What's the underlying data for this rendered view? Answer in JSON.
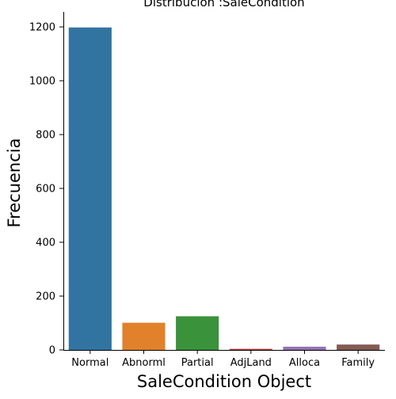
{
  "chart_data": {
    "type": "bar",
    "title": "Distribución :SaleCondition",
    "xlabel": "SaleCondition Object",
    "ylabel": "Frecuencia",
    "categories": [
      "Normal",
      "Abnorml",
      "Partial",
      "AdjLand",
      "Alloca",
      "Family"
    ],
    "values": [
      1198,
      101,
      125,
      4,
      12,
      20
    ],
    "colors": [
      "#3274a1",
      "#e1812c",
      "#3a923a",
      "#c03d3e",
      "#9372b2",
      "#845b53"
    ],
    "ylim": [
      0,
      1260
    ],
    "yticks": [
      0,
      200,
      400,
      600,
      800,
      1000,
      1200
    ],
    "grid": false,
    "legend": "none"
  }
}
